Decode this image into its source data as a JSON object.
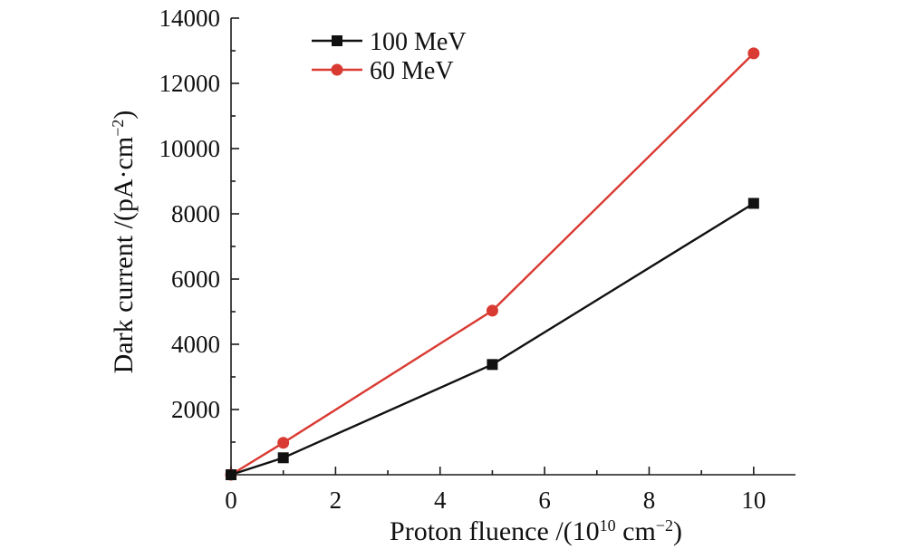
{
  "chart_data": {
    "type": "line",
    "title": "",
    "xlabel_main": "Proton fluence /(10",
    "xlabel_sup": "10",
    "xlabel_unit": " cm",
    "xlabel_unit_sup": "−2",
    "xlabel_close": ")",
    "ylabel_main": "Dark current /(pA·cm",
    "ylabel_sup": "−2",
    "ylabel_close": ")",
    "xlim": [
      0,
      10.8
    ],
    "ylim": [
      0,
      14000
    ],
    "xticks": [
      0,
      2,
      4,
      6,
      8,
      10
    ],
    "yticks": [
      2000,
      4000,
      6000,
      8000,
      10000,
      12000,
      14000
    ],
    "legend_position": "top-left",
    "grid": false,
    "series": [
      {
        "name": "100 MeV",
        "color": "#111111",
        "marker": "square",
        "x": [
          0,
          1,
          5,
          10
        ],
        "y": [
          0,
          520,
          3380,
          8320
        ]
      },
      {
        "name": "60 MeV",
        "color": "#d93a32",
        "marker": "circle",
        "x": [
          0,
          1,
          5,
          10
        ],
        "y": [
          0,
          980,
          5030,
          12920
        ]
      }
    ]
  }
}
